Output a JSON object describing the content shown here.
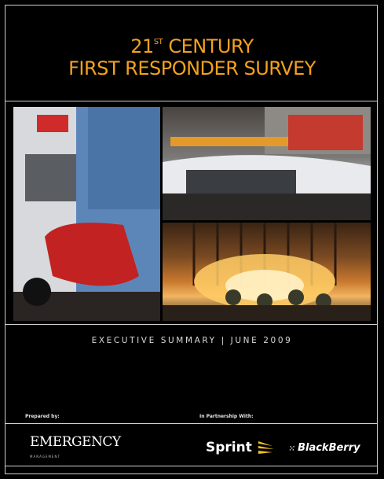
{
  "cover": {
    "title_prefix": "21",
    "title_sup": "ST",
    "title_line1_rest": " CENTURY",
    "title_line2": "FIRST RESPONDER SURVEY",
    "subtitle": "EXECUTIVE SUMMARY | JUNE 2009",
    "prepared_label": "Prepared by:",
    "partnership_label": "In Partnership With:",
    "accent_color": "#f4a11e"
  },
  "logos": {
    "emergency": "EMERGENCY",
    "emergency_sub": "MANAGEMENT",
    "sprint": "Sprint",
    "blackberry": "BlackBerry"
  }
}
